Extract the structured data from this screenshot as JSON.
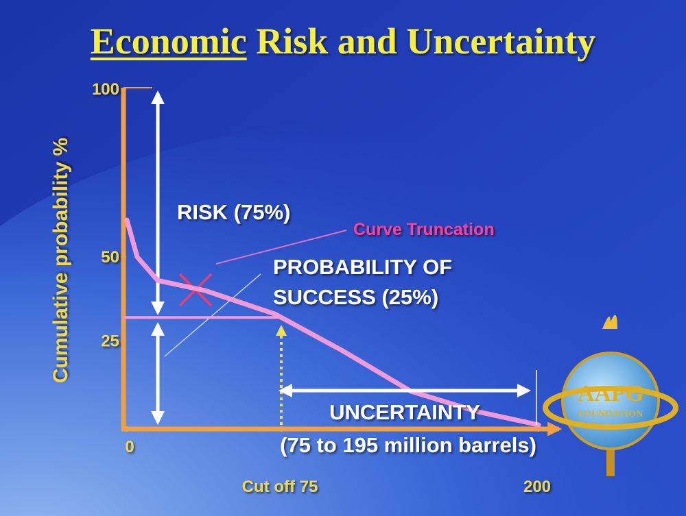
{
  "chart_data": {
    "type": "line",
    "title": "Economic Risk and Uncertainty",
    "title_underlined": "Economic",
    "y_label": "Cumulative probability %",
    "x": [
      0,
      5,
      15,
      38,
      72,
      105,
      138,
      170,
      200
    ],
    "series": [
      {
        "name": "Cumulative probability",
        "color": "#f29ad8",
        "values": [
          61,
          50,
          43,
          40,
          33,
          22,
          10,
          4,
          0
        ]
      }
    ],
    "xlim": [
      0,
      200
    ],
    "xticks": [
      0,
      {
        "value": 75,
        "label": "Cut off 75"
      },
      200
    ],
    "ylim": [
      0,
      100
    ],
    "yticks": [
      25,
      50,
      100
    ],
    "annotations": {
      "risk": "RISK (75%)",
      "truncation": "Curve Truncation",
      "success_1": "PROBABILITY OF",
      "success_2": "SUCCESS (25%)",
      "uncertainty": "UNCERTAINTY",
      "uncertainty_range_text": "(75 to 195 million barrels)"
    },
    "uncertainty_range": [
      75,
      195
    ],
    "logo": {
      "top": "AAPG",
      "bottom": "FOUNDATION"
    }
  }
}
